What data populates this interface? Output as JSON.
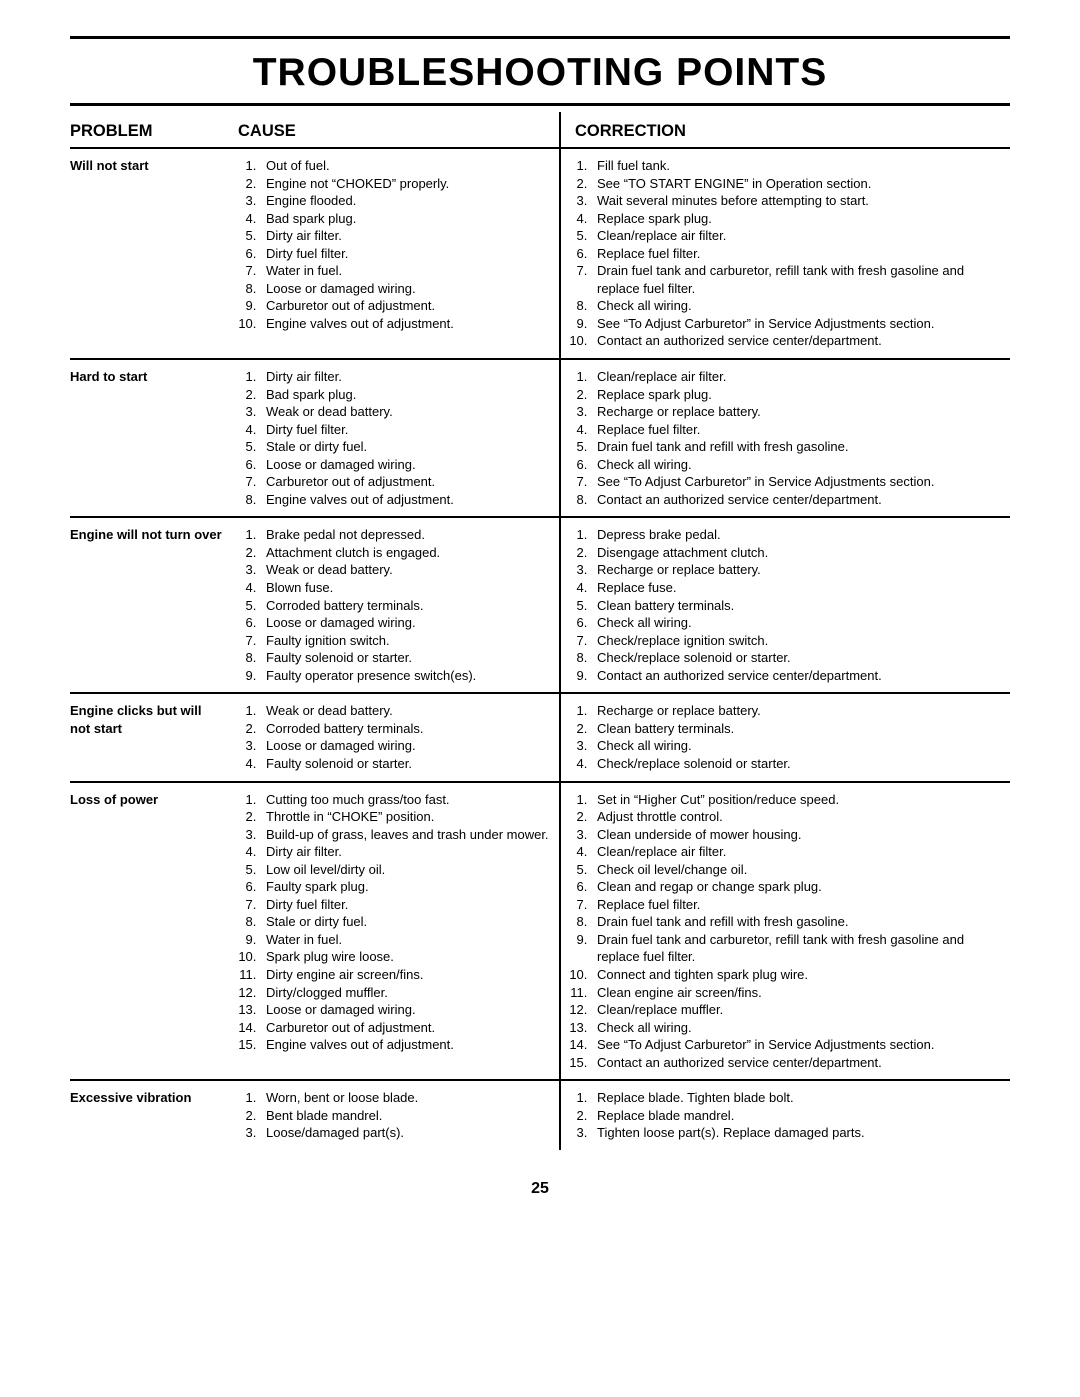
{
  "page_number": "25",
  "title": "TROUBLESHOOTING POINTS",
  "headers": {
    "problem": "PROBLEM",
    "cause": "CAUSE",
    "correction": "CORRECTION"
  },
  "rows": [
    {
      "problem": "Will not start",
      "causes": [
        "Out of fuel.",
        "Engine not “CHOKED” properly.",
        "Engine flooded.",
        "Bad spark plug.",
        "Dirty air filter.",
        "Dirty fuel filter.",
        "Water in fuel.",
        "Loose or damaged wiring.",
        "Carburetor out of adjustment.",
        "Engine valves out of adjustment."
      ],
      "corrections": [
        "Fill fuel tank.",
        "See “TO START ENGINE” in Operation section.",
        "Wait several minutes before attempting to start.",
        "Replace spark plug.",
        "Clean/replace air filter.",
        "Replace fuel filter.",
        "Drain fuel tank and carburetor, refill tank with fresh gasoline and replace fuel filter.",
        "Check all wiring.",
        "See “To Adjust Carburetor” in Service Adjustments section.",
        "Contact an authorized service center/department."
      ]
    },
    {
      "problem": "Hard to start",
      "causes": [
        "Dirty air filter.",
        "Bad spark plug.",
        "Weak or dead battery.",
        "Dirty fuel filter.",
        "Stale or dirty fuel.",
        "Loose or damaged wiring.",
        "Carburetor out of adjustment.",
        "Engine valves out of adjustment."
      ],
      "corrections": [
        "Clean/replace air filter.",
        "Replace spark plug.",
        "Recharge or replace battery.",
        "Replace fuel filter.",
        "Drain fuel tank and refill with fresh gasoline.",
        "Check all wiring.",
        "See “To Adjust Carburetor” in Service Adjustments section.",
        "Contact an authorized service center/department."
      ]
    },
    {
      "problem": "Engine will not turn over",
      "causes": [
        "Brake pedal not depressed.",
        "Attachment clutch is engaged.",
        "Weak or dead battery.",
        "Blown fuse.",
        "Corroded battery terminals.",
        "Loose or damaged wiring.",
        "Faulty ignition switch.",
        "Faulty solenoid or starter.",
        "Faulty operator presence switch(es)."
      ],
      "corrections": [
        "Depress brake pedal.",
        "Disengage attachment clutch.",
        "Recharge or replace battery.",
        "Replace fuse.",
        "Clean battery terminals.",
        "Check all wiring.",
        "Check/replace ignition switch.",
        "Check/replace solenoid or starter.",
        "Contact an authorized service center/department."
      ]
    },
    {
      "problem": "Engine clicks but will not start",
      "causes": [
        "Weak or dead battery.",
        "Corroded battery terminals.",
        "Loose or damaged wiring.",
        "Faulty solenoid or starter."
      ],
      "corrections": [
        "Recharge or replace battery.",
        "Clean battery terminals.",
        "Check all wiring.",
        "Check/replace solenoid or starter."
      ]
    },
    {
      "problem": "Loss of power",
      "causes": [
        "Cutting too much grass/too fast.",
        "Throttle in “CHOKE” position.",
        "Build-up of grass, leaves and trash under mower.",
        "Dirty air filter.",
        "Low oil level/dirty oil.",
        "Faulty spark plug.",
        "Dirty fuel filter.",
        "Stale or dirty fuel.",
        "Water in fuel.",
        "Spark plug wire loose.",
        "Dirty engine air screen/fins.",
        "Dirty/clogged muffler.",
        "Loose or damaged wiring.",
        "Carburetor out of adjustment.",
        "Engine valves out of adjustment."
      ],
      "corrections": [
        "Set in “Higher Cut” position/reduce speed.",
        "Adjust throttle control.",
        "Clean underside of mower housing.",
        "Clean/replace air filter.",
        "Check oil level/change oil.",
        "Clean and regap or change spark plug.",
        "Replace fuel filter.",
        "Drain fuel tank and refill with fresh gasoline.",
        "Drain fuel tank and carburetor, refill tank with fresh gasoline and replace fuel filter.",
        "Connect and tighten spark plug wire.",
        "Clean engine air screen/fins.",
        "Clean/replace muffler.",
        "Check all wiring.",
        "See “To Adjust Carburetor” in Service Adjustments section.",
        "Contact an authorized service center/department."
      ]
    },
    {
      "problem": "Excessive vibration",
      "causes": [
        "Worn, bent or loose blade.",
        "Bent blade mandrel.",
        "Loose/damaged part(s)."
      ],
      "corrections": [
        "Replace blade.  Tighten blade bolt.",
        "Replace blade mandrel.",
        "Tighten loose part(s).  Replace damaged parts."
      ]
    }
  ],
  "colors": {
    "text": "#000000",
    "bg": "#ffffff",
    "rule": "#000000"
  },
  "fonts": {
    "title_size_pt": 29,
    "header_size_pt": 12,
    "body_size_pt": 10
  }
}
